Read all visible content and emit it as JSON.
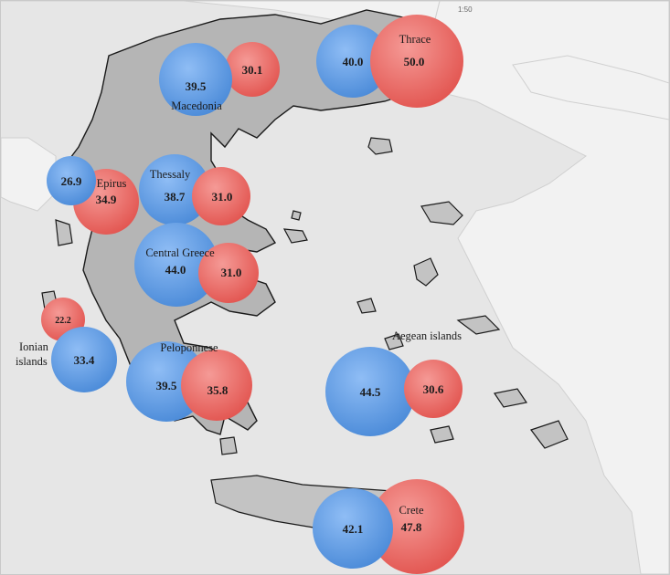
{
  "colors": {
    "sea": "#e6e6e6",
    "neighbor_land": "#f2f2f2",
    "greek_mainland": "#b5b5b5",
    "coast_stroke": "#1a1a1a",
    "blue_bubble": "#5b9be6",
    "red_bubble": "#ee6a66"
  },
  "top_label": "1:50",
  "regions": [
    {
      "name": "Thrace",
      "blue": "40.0",
      "red": "50.0"
    },
    {
      "name": "Macedonia",
      "blue": "39.5",
      "red": "30.1"
    },
    {
      "name": "Epirus",
      "blue": "26.9",
      "red": "34.9"
    },
    {
      "name": "Thessaly",
      "blue": "38.7",
      "red": "31.0"
    },
    {
      "name": "Central Greece",
      "blue": "44.0",
      "red": "31.0"
    },
    {
      "name": "Ionian islands",
      "blue": "33.4",
      "red": "22.2"
    },
    {
      "name": "Peloponnese",
      "blue": "39.5",
      "red": "35.8"
    },
    {
      "name": "Aegean islands",
      "blue": "44.5",
      "red": "30.6"
    },
    {
      "name": "Crete",
      "blue": "42.1",
      "red": "47.8"
    }
  ]
}
